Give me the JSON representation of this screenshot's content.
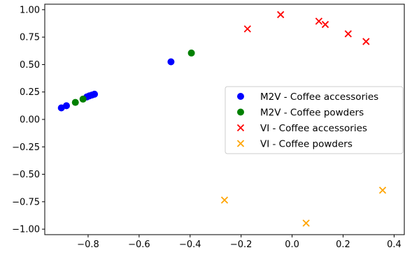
{
  "chart_data": {
    "type": "scatter",
    "title": "",
    "xlabel": "",
    "ylabel": "",
    "xlim": [
      -0.97,
      0.44
    ],
    "ylim": [
      -1.05,
      1.05
    ],
    "xticks": [
      "−0.8",
      "−0.6",
      "−0.4",
      "−0.2",
      "0.0",
      "0.2",
      "0.4"
    ],
    "xtick_values": [
      -0.8,
      -0.6,
      -0.4,
      -0.2,
      0.0,
      0.2,
      0.4
    ],
    "yticks": [
      "1.00",
      "0.75",
      "0.50",
      "0.25",
      "0.00",
      "−0.25",
      "−0.50",
      "−0.75",
      "−1.00"
    ],
    "ytick_values": [
      1.0,
      0.75,
      0.5,
      0.25,
      0.0,
      -0.25,
      -0.5,
      -0.75,
      -1.0
    ],
    "grid": false,
    "legend_position": "center-right",
    "series": [
      {
        "name": "M2V - Coffee accessories",
        "marker": "circle",
        "color": "#0000ff",
        "points": [
          [
            -0.905,
            0.105
          ],
          [
            -0.885,
            0.125
          ],
          [
            -0.805,
            0.205
          ],
          [
            -0.795,
            0.215
          ],
          [
            -0.785,
            0.222
          ],
          [
            -0.775,
            0.23
          ],
          [
            -0.475,
            0.525
          ]
        ]
      },
      {
        "name": "M2V - Coffee powders",
        "marker": "circle",
        "color": "#008000",
        "points": [
          [
            -0.85,
            0.155
          ],
          [
            -0.82,
            0.185
          ],
          [
            -0.395,
            0.605
          ]
        ]
      },
      {
        "name": "VI - Coffee accessories",
        "marker": "x",
        "color": "#ff0000",
        "points": [
          [
            -0.175,
            0.825
          ],
          [
            -0.045,
            0.955
          ],
          [
            0.105,
            0.895
          ],
          [
            0.13,
            0.865
          ],
          [
            0.22,
            0.78
          ],
          [
            0.29,
            0.71
          ]
        ]
      },
      {
        "name": "VI - Coffee powders",
        "marker": "x",
        "color": "#ffa500",
        "points": [
          [
            -0.265,
            -0.735
          ],
          [
            0.055,
            -0.945
          ],
          [
            0.355,
            -0.645
          ]
        ]
      }
    ]
  }
}
